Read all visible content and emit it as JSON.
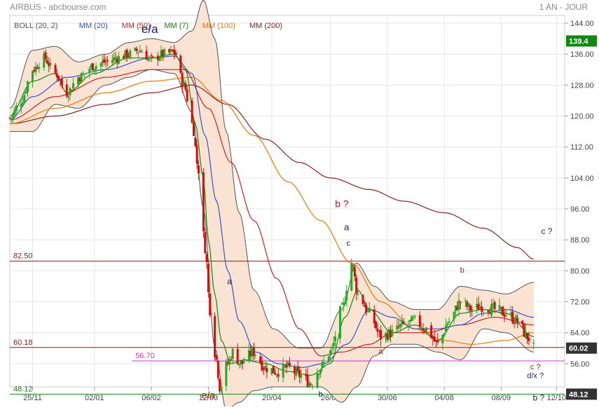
{
  "header": {
    "title": "AIRBUS - abcbourse.com",
    "period": "1 AN - JOUR"
  },
  "legend": [
    {
      "label": "BOLL (20, 2)",
      "color": "#555555"
    },
    {
      "label": "MM (20)",
      "color": "#3355cc"
    },
    {
      "label": "MM (50)",
      "color": "#cc2222"
    },
    {
      "label": "MM (7)",
      "color": "#118811"
    },
    {
      "label": "MM (100)",
      "color": "#ee7700"
    },
    {
      "label": "MM (200)",
      "color": "#882222"
    }
  ],
  "colors": {
    "up": "#22aa22",
    "down": "#cc1111",
    "bollinger_fill": "#fbe3d3",
    "bollinger_line": "#555555",
    "last_price_bg": "#118811",
    "current_price_bg": "#333333"
  },
  "chart_data": {
    "type": "candlestick",
    "yaxis": {
      "min": 50,
      "max": 146,
      "position": "right",
      "ticks": [
        56,
        64,
        72,
        80,
        88,
        96,
        104,
        112,
        120,
        128,
        136,
        144
      ],
      "tick_labels": [
        "56.00",
        "64.00",
        "72.00",
        "80.00",
        "88.00",
        "96.00",
        "104.00",
        "112.00",
        "120.00",
        "128.00",
        "136.00",
        "144.00"
      ]
    },
    "xaxis": {
      "date_start": "2019-11-11",
      "date_end": "2020-10-17",
      "ticks": [
        {
          "label": "25/11",
          "date": "2019-11-25"
        },
        {
          "label": "02/01",
          "date": "2020-01-02"
        },
        {
          "label": "06/02",
          "date": "2020-02-06"
        },
        {
          "label": "12/03",
          "date": "2020-03-12"
        },
        {
          "label": "20/04",
          "date": "2020-04-20"
        },
        {
          "label": "26/05",
          "date": "2020-05-26"
        },
        {
          "label": "30/06",
          "date": "2020-06-30"
        },
        {
          "label": "04/08",
          "date": "2020-08-04"
        },
        {
          "label": "08/09",
          "date": "2020-09-08"
        },
        {
          "label": "12/10",
          "date": "2020-10-12"
        }
      ]
    },
    "grid": true,
    "price_anchors": [
      {
        "date": "2019-11-11",
        "close": 119.5
      },
      {
        "date": "2019-11-18",
        "close": 124
      },
      {
        "date": "2019-11-25",
        "close": 132
      },
      {
        "date": "2019-12-02",
        "close": 135
      },
      {
        "date": "2019-12-09",
        "close": 131
      },
      {
        "date": "2019-12-16",
        "close": 126
      },
      {
        "date": "2019-12-23",
        "close": 130
      },
      {
        "date": "2020-01-02",
        "close": 133
      },
      {
        "date": "2020-01-09",
        "close": 134
      },
      {
        "date": "2020-01-16",
        "close": 135
      },
      {
        "date": "2020-01-23",
        "close": 136
      },
      {
        "date": "2020-01-30",
        "close": 137
      },
      {
        "date": "2020-02-06",
        "close": 134.5
      },
      {
        "date": "2020-02-13",
        "close": 136
      },
      {
        "date": "2020-02-20",
        "close": 136.5
      },
      {
        "date": "2020-02-26",
        "close": 128
      },
      {
        "date": "2020-03-02",
        "close": 118
      },
      {
        "date": "2020-03-06",
        "close": 106
      },
      {
        "date": "2020-03-10",
        "close": 86
      },
      {
        "date": "2020-03-13",
        "close": 70
      },
      {
        "date": "2020-03-17",
        "close": 57
      },
      {
        "date": "2020-03-19",
        "close": 50
      },
      {
        "date": "2020-03-24",
        "close": 56
      },
      {
        "date": "2020-03-27",
        "close": 59
      },
      {
        "date": "2020-04-01",
        "close": 56
      },
      {
        "date": "2020-04-09",
        "close": 59
      },
      {
        "date": "2020-04-16",
        "close": 55
      },
      {
        "date": "2020-04-23",
        "close": 54
      },
      {
        "date": "2020-04-30",
        "close": 55
      },
      {
        "date": "2020-05-07",
        "close": 53
      },
      {
        "date": "2020-05-14",
        "close": 51
      },
      {
        "date": "2020-05-20",
        "close": 55
      },
      {
        "date": "2020-05-26",
        "close": 59
      },
      {
        "date": "2020-06-02",
        "close": 70
      },
      {
        "date": "2020-06-08",
        "close": 82
      },
      {
        "date": "2020-06-12",
        "close": 74
      },
      {
        "date": "2020-06-19",
        "close": 69
      },
      {
        "date": "2020-06-26",
        "close": 63
      },
      {
        "date": "2020-07-03",
        "close": 64
      },
      {
        "date": "2020-07-10",
        "close": 66
      },
      {
        "date": "2020-07-17",
        "close": 67
      },
      {
        "date": "2020-07-24",
        "close": 65
      },
      {
        "date": "2020-07-31",
        "close": 61
      },
      {
        "date": "2020-08-07",
        "close": 67
      },
      {
        "date": "2020-08-14",
        "close": 72
      },
      {
        "date": "2020-08-21",
        "close": 70
      },
      {
        "date": "2020-08-28",
        "close": 71
      },
      {
        "date": "2020-09-04",
        "close": 70
      },
      {
        "date": "2020-09-11",
        "close": 69
      },
      {
        "date": "2020-09-18",
        "close": 67
      },
      {
        "date": "2020-09-24",
        "close": 63
      },
      {
        "date": "2020-09-28",
        "close": 60
      }
    ],
    "moving_average_anchors": {
      "mm20": [
        [
          "2019-11-11",
          119
        ],
        [
          "2019-11-25",
          125
        ],
        [
          "2019-12-16",
          130
        ],
        [
          "2020-01-09",
          132
        ],
        [
          "2020-02-06",
          135
        ],
        [
          "2020-02-20",
          135.5
        ],
        [
          "2020-03-02",
          131
        ],
        [
          "2020-03-10",
          115
        ],
        [
          "2020-03-17",
          98
        ],
        [
          "2020-03-24",
          80
        ],
        [
          "2020-03-31",
          67
        ],
        [
          "2020-04-10",
          59
        ],
        [
          "2020-04-24",
          56
        ],
        [
          "2020-05-08",
          55
        ],
        [
          "2020-05-22",
          56
        ],
        [
          "2020-06-05",
          61
        ],
        [
          "2020-06-19",
          70
        ],
        [
          "2020-07-03",
          68
        ],
        [
          "2020-07-17",
          65
        ],
        [
          "2020-07-31",
          65
        ],
        [
          "2020-08-14",
          66
        ],
        [
          "2020-08-28",
          69
        ],
        [
          "2020-09-11",
          70
        ],
        [
          "2020-09-28",
          68
        ]
      ],
      "mm50": [
        [
          "2019-11-11",
          119
        ],
        [
          "2019-12-09",
          125
        ],
        [
          "2020-01-09",
          130
        ],
        [
          "2020-02-06",
          132
        ],
        [
          "2020-02-26",
          132
        ],
        [
          "2020-03-12",
          122
        ],
        [
          "2020-03-26",
          108
        ],
        [
          "2020-04-09",
          93
        ],
        [
          "2020-04-23",
          78
        ],
        [
          "2020-05-07",
          65
        ],
        [
          "2020-05-20",
          58
        ],
        [
          "2020-06-02",
          59
        ],
        [
          "2020-06-19",
          61
        ],
        [
          "2020-07-03",
          64
        ],
        [
          "2020-07-24",
          64
        ],
        [
          "2020-08-14",
          66
        ],
        [
          "2020-09-04",
          68
        ],
        [
          "2020-09-28",
          66
        ]
      ],
      "mm7": [
        [
          "2019-11-11",
          120
        ],
        [
          "2019-11-25",
          129
        ],
        [
          "2019-12-09",
          131
        ],
        [
          "2019-12-16",
          126
        ],
        [
          "2020-01-02",
          131
        ],
        [
          "2020-01-23",
          135
        ],
        [
          "2020-02-06",
          135
        ],
        [
          "2020-02-20",
          136
        ],
        [
          "2020-02-27",
          132
        ],
        [
          "2020-03-04",
          118
        ],
        [
          "2020-03-09",
          104
        ],
        [
          "2020-03-12",
          88
        ],
        [
          "2020-03-16",
          74
        ],
        [
          "2020-03-20",
          62
        ],
        [
          "2020-03-26",
          56
        ],
        [
          "2020-04-03",
          57
        ],
        [
          "2020-04-16",
          56
        ],
        [
          "2020-04-30",
          54
        ],
        [
          "2020-05-14",
          53
        ],
        [
          "2020-05-26",
          56
        ],
        [
          "2020-06-04",
          68
        ],
        [
          "2020-06-12",
          75
        ],
        [
          "2020-06-19",
          70
        ],
        [
          "2020-07-03",
          64
        ],
        [
          "2020-07-17",
          66
        ],
        [
          "2020-07-31",
          62
        ],
        [
          "2020-08-14",
          69
        ],
        [
          "2020-08-28",
          70
        ],
        [
          "2020-09-11",
          69
        ],
        [
          "2020-09-28",
          63
        ]
      ],
      "mm100": [
        [
          "2019-11-11",
          118
        ],
        [
          "2019-12-09",
          122
        ],
        [
          "2020-01-09",
          126
        ],
        [
          "2020-02-06",
          129
        ],
        [
          "2020-03-02",
          130
        ],
        [
          "2020-03-20",
          124
        ],
        [
          "2020-04-09",
          115
        ],
        [
          "2020-04-30",
          103
        ],
        [
          "2020-05-20",
          93
        ],
        [
          "2020-06-08",
          82
        ],
        [
          "2020-06-26",
          72
        ],
        [
          "2020-07-17",
          65
        ],
        [
          "2020-08-04",
          62
        ],
        [
          "2020-08-21",
          61
        ],
        [
          "2020-09-11",
          62
        ],
        [
          "2020-09-28",
          64
        ]
      ],
      "mm200": [
        [
          "2019-11-11",
          118
        ],
        [
          "2019-12-09",
          120
        ],
        [
          "2020-01-09",
          123
        ],
        [
          "2020-02-06",
          126
        ],
        [
          "2020-03-02",
          128
        ],
        [
          "2020-03-24",
          123
        ],
        [
          "2020-04-16",
          114
        ],
        [
          "2020-05-07",
          108
        ],
        [
          "2020-05-26",
          104
        ],
        [
          "2020-06-19",
          101
        ],
        [
          "2020-07-10",
          98
        ],
        [
          "2020-08-04",
          95
        ],
        [
          "2020-08-28",
          91
        ],
        [
          "2020-09-18",
          86
        ],
        [
          "2020-09-28",
          83
        ]
      ]
    },
    "bollinger_anchors": {
      "upper": [
        [
          "2019-11-11",
          122
        ],
        [
          "2019-11-25",
          137
        ],
        [
          "2019-12-09",
          138
        ],
        [
          "2019-12-23",
          134
        ],
        [
          "2020-01-09",
          136
        ],
        [
          "2020-01-23",
          139
        ],
        [
          "2020-02-06",
          140
        ],
        [
          "2020-02-20",
          139
        ],
        [
          "2020-03-02",
          142
        ],
        [
          "2020-03-09",
          150
        ],
        [
          "2020-03-16",
          140
        ],
        [
          "2020-03-23",
          116
        ],
        [
          "2020-03-31",
          95
        ],
        [
          "2020-04-09",
          75
        ],
        [
          "2020-04-21",
          65
        ],
        [
          "2020-05-07",
          60
        ],
        [
          "2020-05-20",
          60
        ],
        [
          "2020-06-02",
          70
        ],
        [
          "2020-06-11",
          82
        ],
        [
          "2020-06-22",
          76
        ],
        [
          "2020-07-03",
          72
        ],
        [
          "2020-07-17",
          70
        ],
        [
          "2020-07-31",
          70
        ],
        [
          "2020-08-14",
          76
        ],
        [
          "2020-08-28",
          75
        ],
        [
          "2020-09-11",
          74
        ],
        [
          "2020-09-28",
          77
        ]
      ],
      "lower": [
        [
          "2019-11-11",
          116
        ],
        [
          "2019-11-25",
          116
        ],
        [
          "2019-12-09",
          123
        ],
        [
          "2019-12-23",
          122
        ],
        [
          "2020-01-09",
          128
        ],
        [
          "2020-01-23",
          130
        ],
        [
          "2020-02-06",
          132
        ],
        [
          "2020-02-20",
          131
        ],
        [
          "2020-03-02",
          121
        ],
        [
          "2020-03-09",
          96
        ],
        [
          "2020-03-16",
          60
        ],
        [
          "2020-03-23",
          44
        ],
        [
          "2020-03-31",
          46
        ],
        [
          "2020-04-09",
          49
        ],
        [
          "2020-04-21",
          50
        ],
        [
          "2020-05-07",
          50
        ],
        [
          "2020-05-20",
          50
        ],
        [
          "2020-06-02",
          46
        ],
        [
          "2020-06-11",
          50
        ],
        [
          "2020-06-22",
          58
        ],
        [
          "2020-07-03",
          61
        ],
        [
          "2020-07-17",
          61
        ],
        [
          "2020-07-31",
          59
        ],
        [
          "2020-08-14",
          57
        ],
        [
          "2020-08-28",
          65
        ],
        [
          "2020-09-11",
          64
        ],
        [
          "2020-09-28",
          59
        ]
      ]
    },
    "horizontal_lines": [
      {
        "label": "82.50",
        "value": 82.5,
        "color": "#8b1a1a",
        "from": "2019-11-11"
      },
      {
        "label": "60.18",
        "value": 60.18,
        "color": "#8b1a1a",
        "from": "2019-11-11"
      },
      {
        "label": "56.70",
        "value": 56.7,
        "color": "#cc33cc",
        "from": "2020-01-25"
      },
      {
        "label": "48.12",
        "value": 48.12,
        "color": "#118811",
        "from": "2019-11-11"
      }
    ],
    "price_tags": [
      {
        "label": "139.4",
        "value": 139.4,
        "bg": "#118811"
      },
      {
        "label": "60.02",
        "value": 60.02,
        "bg": "#333333"
      },
      {
        "label": "48.12",
        "value": 48.12,
        "bg": "#333333"
      }
    ],
    "annotations": [
      {
        "text": "e/a",
        "date": "2020-02-05",
        "value": 141.5,
        "color": "#1a1a6e",
        "size": 17
      },
      {
        "text": "e/a",
        "date": "2020-03-12",
        "value": 47,
        "color": "#cc1111",
        "size": 14
      },
      {
        "text": "a",
        "date": "2020-03-25",
        "value": 76.5,
        "color": "#1a1a6e",
        "size": 12
      },
      {
        "text": "b",
        "date": "2020-05-20",
        "value": 47.5,
        "color": "#1a1a6e",
        "size": 11
      },
      {
        "text": "b ?",
        "date": "2020-06-02",
        "value": 96.5,
        "color": "#cc1111",
        "size": 14
      },
      {
        "text": "a",
        "date": "2020-06-05",
        "value": 90.5,
        "color": "#1a1a6e",
        "size": 13
      },
      {
        "text": "c",
        "date": "2020-06-06",
        "value": 86.5,
        "color": "#1a1a6e",
        "size": 11
      },
      {
        "text": "a",
        "date": "2020-06-26",
        "value": 58.5,
        "color": "#cc1111",
        "size": 11
      },
      {
        "text": "b",
        "date": "2020-08-15",
        "value": 79.5,
        "color": "#cc1111",
        "size": 11
      },
      {
        "text": "c ?",
        "date": "2020-10-06",
        "value": 89.5,
        "color": "#1a1a6e",
        "size": 12
      },
      {
        "text": "c ?",
        "date": "2020-09-29",
        "value": 54.5,
        "color": "#cc1111",
        "size": 11
      },
      {
        "text": "d/x ?",
        "date": "2020-09-29",
        "value": 52.3,
        "color": "#1a1a6e",
        "size": 11
      },
      {
        "text": "b ?",
        "date": "2020-10-01",
        "value": 46.5,
        "color": "#1a1a6e",
        "size": 12
      }
    ]
  }
}
